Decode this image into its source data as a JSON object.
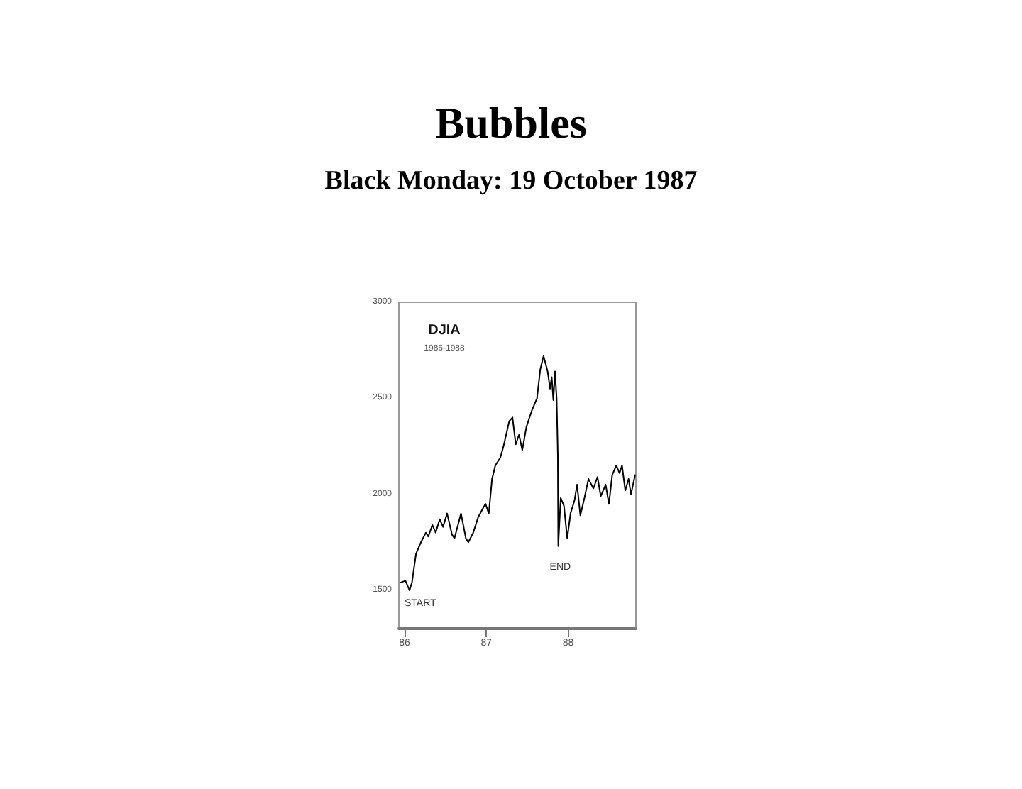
{
  "chart_data": {
    "type": "line",
    "title": "Bubbles",
    "subtitle": "Black Monday: 19 October 1987",
    "annotations": [
      "DJIA",
      "1986-1988",
      {
        "text": "START",
        "x": 1985.95,
        "y": 1540
      },
      {
        "text": "END",
        "x": 1987.88,
        "y": 1730
      }
    ],
    "x": [
      1985.95,
      1986.01,
      1986.06,
      1986.09,
      1986.14,
      1986.2,
      1986.26,
      1986.29,
      1986.34,
      1986.38,
      1986.43,
      1986.47,
      1986.52,
      1986.58,
      1986.61,
      1986.69,
      1986.75,
      1986.78,
      1986.84,
      1986.9,
      1986.95,
      1986.99,
      1987.03,
      1987.07,
      1987.11,
      1987.17,
      1987.21,
      1987.28,
      1987.32,
      1987.36,
      1987.4,
      1987.44,
      1987.49,
      1987.56,
      1987.62,
      1987.66,
      1987.7,
      1987.75,
      1987.78,
      1987.8,
      1987.82,
      1987.84,
      1987.86,
      1987.875,
      1987.88,
      1987.91,
      1987.95,
      1987.99,
      1988.03,
      1988.08,
      1988.11,
      1988.15,
      1988.2,
      1988.25,
      1988.31,
      1988.36,
      1988.4,
      1988.46,
      1988.5,
      1988.54,
      1988.59,
      1988.63,
      1988.66,
      1988.7,
      1988.74,
      1988.77,
      1988.82
    ],
    "series": [
      {
        "color": "#000000",
        "values": [
          1540,
          1550,
          1500,
          1540,
          1690,
          1750,
          1800,
          1780,
          1840,
          1800,
          1870,
          1830,
          1900,
          1790,
          1770,
          1900,
          1770,
          1750,
          1800,
          1880,
          1920,
          1950,
          1900,
          2080,
          2150,
          2190,
          2250,
          2380,
          2400,
          2260,
          2310,
          2230,
          2350,
          2440,
          2500,
          2650,
          2720,
          2640,
          2550,
          2610,
          2490,
          2640,
          2500,
          2200,
          1730,
          1980,
          1940,
          1770,
          1900,
          1970,
          2050,
          1890,
          1980,
          2080,
          2030,
          2090,
          1990,
          2050,
          1950,
          2100,
          2150,
          2110,
          2150,
          2020,
          2080,
          2000,
          2100
        ]
      }
    ],
    "xlim": [
      1985.93,
      1988.83
    ],
    "xticks": [
      {
        "value": 1986,
        "label": "86"
      },
      {
        "value": 1987,
        "label": "87"
      },
      {
        "value": 1988,
        "label": "88"
      }
    ],
    "ylim": [
      1300,
      3000
    ],
    "yticks": [
      1500,
      2000,
      2500,
      3000
    ]
  }
}
